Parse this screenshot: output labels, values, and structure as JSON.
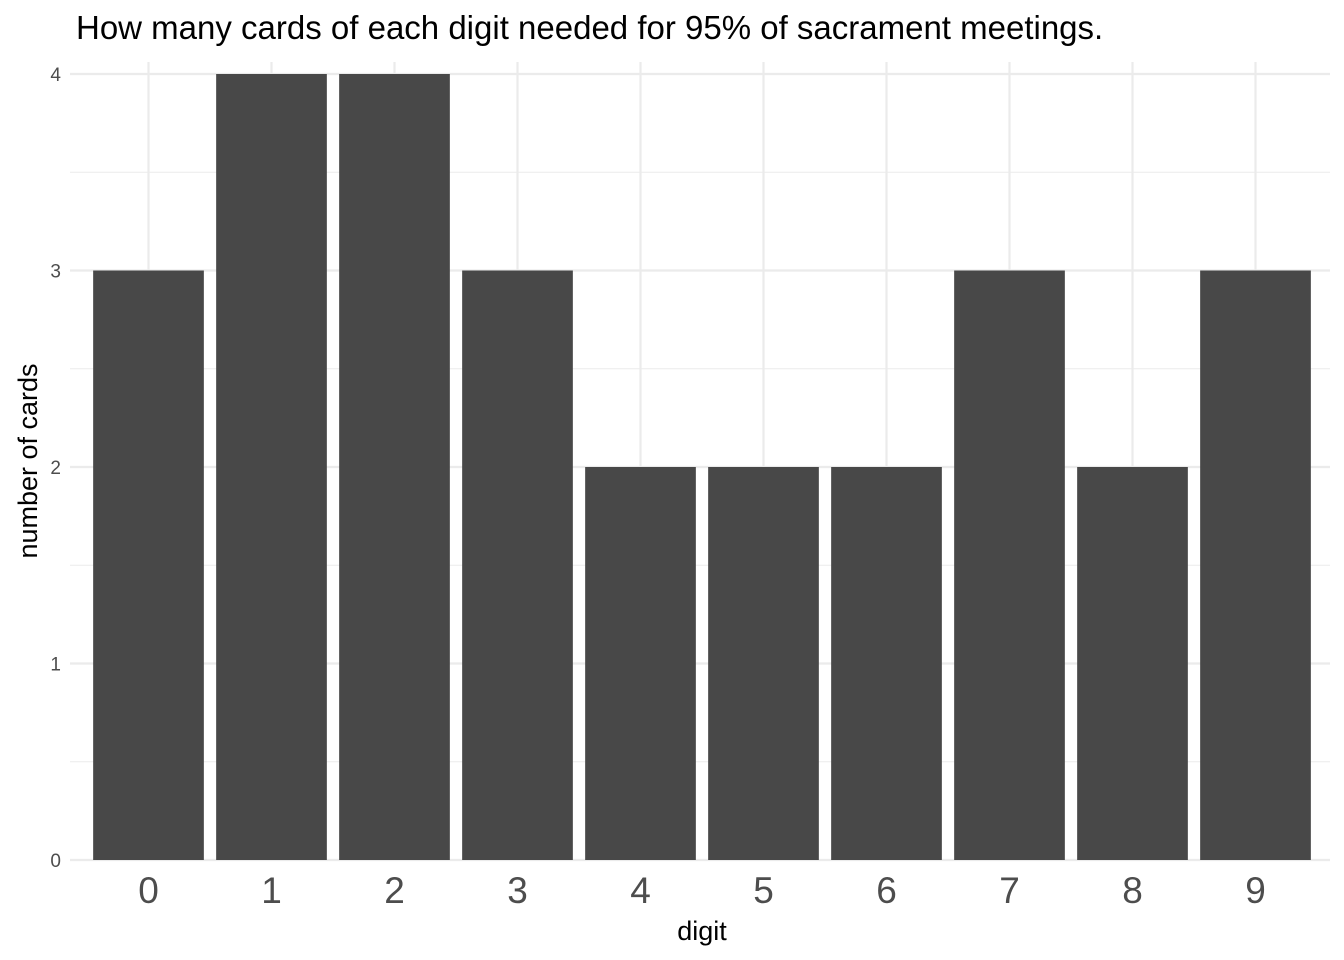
{
  "chart_data": {
    "type": "bar",
    "title": "How many cards of each digit needed for 95% of sacrament meetings.",
    "xlabel": "digit",
    "ylabel": "number of cards",
    "categories": [
      "0",
      "1",
      "2",
      "3",
      "4",
      "5",
      "6",
      "7",
      "8",
      "9"
    ],
    "values": [
      3,
      4,
      4,
      3,
      2,
      2,
      2,
      3,
      2,
      3
    ],
    "ylim": [
      0,
      4
    ],
    "y_ticks": [
      "0",
      "1",
      "2",
      "3",
      "4"
    ],
    "grid": true,
    "bar_color": "#484848",
    "grid_color": "#ebebeb"
  }
}
